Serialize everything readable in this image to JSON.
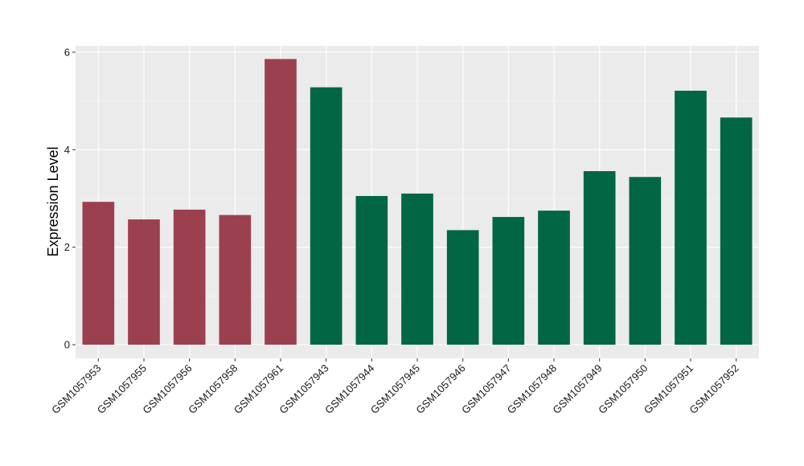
{
  "chart_data": {
    "type": "bar",
    "ylabel": "Expression Level",
    "xlabel": "",
    "ylim": [
      0,
      6.1
    ],
    "yticks": [
      0,
      2,
      4,
      6
    ],
    "grid": true,
    "categories": [
      "GSM1057953",
      "GSM1057955",
      "GSM1057956",
      "GSM1057958",
      "GSM1057961",
      "GSM1057943",
      "GSM1057944",
      "GSM1057945",
      "GSM1057946",
      "GSM1057947",
      "GSM1057948",
      "GSM1057949",
      "GSM1057950",
      "GSM1057951",
      "GSM1057952"
    ],
    "values": [
      2.93,
      2.57,
      2.77,
      2.66,
      5.86,
      5.28,
      3.05,
      3.1,
      2.35,
      2.62,
      2.75,
      3.56,
      3.44,
      5.21,
      4.66
    ],
    "group_index": [
      0,
      0,
      0,
      0,
      0,
      1,
      1,
      1,
      1,
      1,
      1,
      1,
      1,
      1,
      1
    ],
    "colors": {
      "group_colors": [
        "#9b404f",
        "#006644"
      ],
      "panel_background": "#ebebeb",
      "grid_major": "#ffffff",
      "grid_minor": "#f5f5f5"
    }
  }
}
